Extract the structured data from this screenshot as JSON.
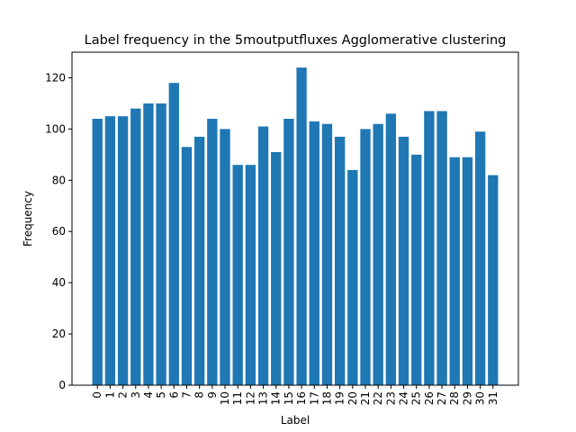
{
  "chart_data": {
    "type": "bar",
    "title": "Label frequency in the 5moutputfluxes Agglomerative clustering",
    "xlabel": "Label",
    "ylabel": "Frequency",
    "categories": [
      "0",
      "1",
      "2",
      "3",
      "4",
      "5",
      "6",
      "7",
      "8",
      "9",
      "10",
      "11",
      "12",
      "13",
      "14",
      "15",
      "16",
      "17",
      "18",
      "19",
      "20",
      "21",
      "22",
      "23",
      "24",
      "25",
      "26",
      "27",
      "28",
      "29",
      "30",
      "31"
    ],
    "values": [
      104,
      105,
      105,
      108,
      110,
      110,
      118,
      93,
      97,
      104,
      100,
      86,
      86,
      101,
      91,
      104,
      124,
      103,
      102,
      97,
      84,
      100,
      102,
      106,
      97,
      90,
      107,
      107,
      89,
      89,
      99,
      82
    ],
    "ylim": [
      0,
      130
    ],
    "yticks": [
      0,
      20,
      40,
      60,
      80,
      100,
      120
    ],
    "bar_color": "#1f77b4",
    "grid": false,
    "legend": "none"
  }
}
